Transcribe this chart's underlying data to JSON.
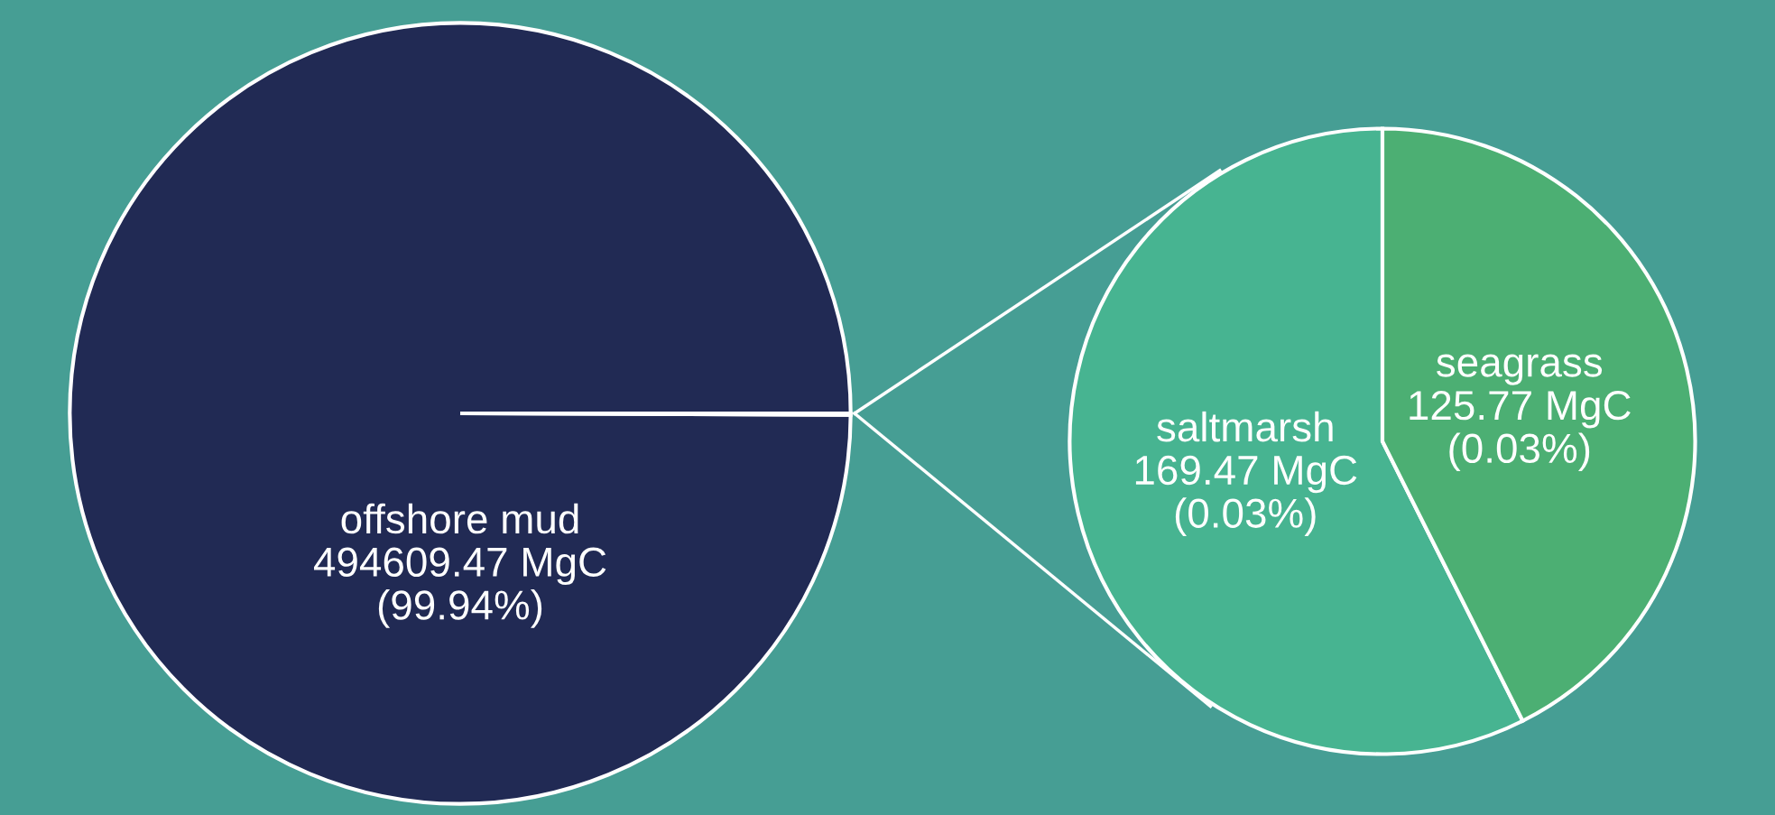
{
  "chart_data": [
    {
      "type": "pie",
      "categories": [
        "offshore mud",
        null
      ],
      "values": [
        494609.47,
        295.24
      ],
      "value_labels": [
        "494609.47 MgC\n(99.94%)",
        null
      ],
      "colors": [
        "#212a54",
        "#212a54"
      ]
    },
    {
      "type": "pie",
      "categories": [
        "saltmarsh",
        "seagrass"
      ],
      "values": [
        169.47,
        125.77
      ],
      "value_labels": [
        "169.47 MgC\n(0.03%)",
        "125.77 MgC\n(0.03%)"
      ],
      "colors": [
        "#47b491",
        "#4caf73"
      ]
    }
  ]
}
